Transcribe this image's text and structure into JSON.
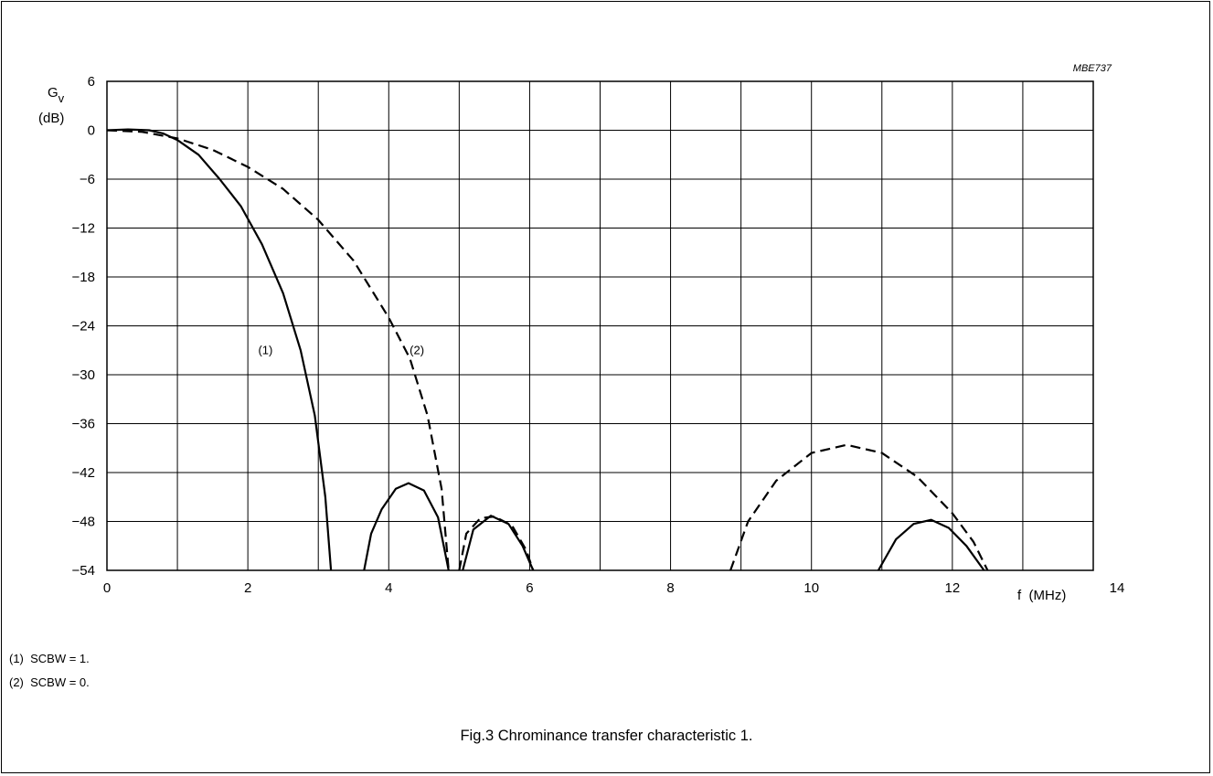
{
  "chart_data": {
    "type": "line",
    "title": "",
    "figure_id": "MBE737",
    "xlabel": "f  (MHz)",
    "ylabel_main": "G",
    "ylabel_sub": "v",
    "ylabel_unit": "(dB)",
    "xlim": [
      0,
      14
    ],
    "ylim": [
      -54,
      6
    ],
    "x_ticks": [
      "0",
      "2",
      "4",
      "6",
      "8",
      "10",
      "12",
      "14"
    ],
    "y_ticks": [
      "6",
      "0",
      "−6",
      "−12",
      "−18",
      "−24",
      "−30",
      "−36",
      "−42",
      "−48",
      "−54"
    ],
    "grid": true,
    "series": [
      {
        "name": "(1)",
        "style": "solid",
        "segments": [
          [
            [
              0,
              0
            ],
            [
              0.3,
              0.1
            ],
            [
              0.6,
              0
            ],
            [
              0.8,
              -0.4
            ],
            [
              1.0,
              -1.2
            ],
            [
              1.3,
              -3
            ],
            [
              1.6,
              -6
            ],
            [
              1.9,
              -9.3
            ],
            [
              2.2,
              -14
            ],
            [
              2.5,
              -20
            ],
            [
              2.75,
              -27
            ],
            [
              2.95,
              -35
            ],
            [
              3.1,
              -45
            ],
            [
              3.18,
              -54
            ]
          ],
          [
            [
              3.65,
              -54
            ],
            [
              3.75,
              -49.5
            ],
            [
              3.9,
              -46.5
            ],
            [
              4.1,
              -44
            ],
            [
              4.28,
              -43.3
            ],
            [
              4.5,
              -44.2
            ],
            [
              4.7,
              -47.5
            ],
            [
              4.85,
              -54
            ]
          ],
          [
            [
              5.05,
              -54
            ],
            [
              5.2,
              -49
            ],
            [
              5.45,
              -47.3
            ],
            [
              5.7,
              -48.3
            ],
            [
              5.9,
              -51
            ],
            [
              6.05,
              -54
            ]
          ],
          [
            [
              10.95,
              -54
            ],
            [
              11.2,
              -50.2
            ],
            [
              11.45,
              -48.3
            ],
            [
              11.7,
              -47.8
            ],
            [
              11.95,
              -48.8
            ],
            [
              12.2,
              -51
            ],
            [
              12.45,
              -54
            ]
          ]
        ]
      },
      {
        "name": "(2)",
        "style": "dashed",
        "segments": [
          [
            [
              0,
              0
            ],
            [
              0.5,
              -0.2
            ],
            [
              1.0,
              -1
            ],
            [
              1.5,
              -2.4
            ],
            [
              2.0,
              -4.5
            ],
            [
              2.5,
              -7.2
            ],
            [
              3.0,
              -11
            ],
            [
              3.5,
              -16
            ],
            [
              4.0,
              -23
            ],
            [
              4.3,
              -28
            ],
            [
              4.55,
              -35
            ],
            [
              4.75,
              -44
            ],
            [
              4.85,
              -54
            ]
          ],
          [
            [
              5.0,
              -54
            ],
            [
              5.1,
              -49.5
            ],
            [
              5.3,
              -47.6
            ],
            [
              5.5,
              -47.4
            ],
            [
              5.75,
              -48.5
            ],
            [
              5.95,
              -51.5
            ],
            [
              6.05,
              -54
            ]
          ],
          [
            [
              8.85,
              -54
            ],
            [
              9.1,
              -48
            ],
            [
              9.5,
              -43
            ],
            [
              10.0,
              -39.6
            ],
            [
              10.5,
              -38.6
            ],
            [
              11.0,
              -39.6
            ],
            [
              11.5,
              -42.5
            ],
            [
              12.0,
              -47
            ],
            [
              12.3,
              -50.5
            ],
            [
              12.5,
              -54
            ]
          ]
        ]
      }
    ],
    "annotations": [
      "(1)",
      "(2)"
    ]
  },
  "notes": [
    "(1)  SCBW = 1.",
    "(2)  SCBW = 0."
  ],
  "caption": "Fig.3  Chrominance transfer characteristic 1."
}
